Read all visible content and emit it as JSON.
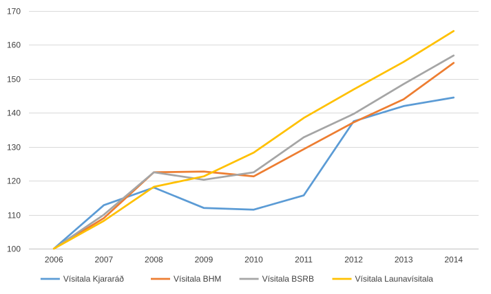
{
  "chart_data": {
    "type": "line",
    "x": [
      "2006",
      "2007",
      "2008",
      "2009",
      "2010",
      "2011",
      "2012",
      "2013",
      "2014"
    ],
    "ylim": [
      100,
      170
    ],
    "yticks": [
      100,
      110,
      120,
      130,
      140,
      150,
      160,
      170
    ],
    "grid": "horizontal",
    "legend_position": "bottom",
    "series": [
      {
        "name": "Vísitala Kjararáð",
        "color": "#5b9bd5",
        "values": [
          100,
          112.8,
          118,
          112,
          111.5,
          115.7,
          137.5,
          142,
          144.5
        ]
      },
      {
        "name": "Vísitala BHM",
        "color": "#ed7d31",
        "values": [
          100,
          109,
          122.5,
          122.7,
          121.3,
          129.3,
          137.2,
          144,
          154.7
        ]
      },
      {
        "name": "Vísitala BSRB",
        "color": "#a5a5a5",
        "values": [
          100,
          110,
          122.5,
          120.3,
          122.5,
          132.8,
          139.7,
          148.5,
          156.9
        ]
      },
      {
        "name": "Vísitala Launavísitala",
        "color": "#ffc000",
        "values": [
          100,
          108.2,
          118.2,
          121.3,
          128.3,
          138.5,
          146.9,
          155,
          164.1
        ]
      }
    ]
  }
}
